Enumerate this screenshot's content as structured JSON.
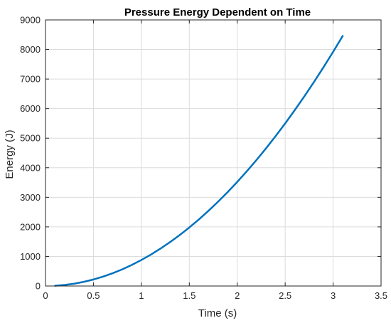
{
  "chart_data": {
    "type": "line",
    "title": "Pressure Energy Dependent on Time",
    "xlabel": "Time (s)",
    "ylabel": "Energy (J)",
    "xlim": [
      0,
      3.5
    ],
    "ylim": [
      0,
      9000
    ],
    "xticks": [
      0,
      0.5,
      1,
      1.5,
      2,
      2.5,
      3,
      3.5
    ],
    "xtick_labels": [
      "0",
      "0.5",
      "1",
      "1.5",
      "2",
      "2.5",
      "3",
      "3.5"
    ],
    "yticks": [
      0,
      1000,
      2000,
      3000,
      4000,
      5000,
      6000,
      7000,
      8000,
      9000
    ],
    "ytick_labels": [
      "0",
      "1000",
      "2000",
      "3000",
      "4000",
      "5000",
      "6000",
      "7000",
      "8000",
      "9000"
    ],
    "grid": true,
    "line_color": "#0072BD",
    "series": [
      {
        "x": [
          0.1,
          0.2,
          0.3,
          0.4,
          0.5,
          0.6,
          0.7,
          0.8,
          0.9,
          1.0,
          1.1,
          1.2,
          1.3,
          1.4,
          1.5,
          1.6,
          1.7,
          1.8,
          1.9,
          2.0,
          2.1,
          2.2,
          2.3,
          2.4,
          2.5,
          2.6,
          2.7,
          2.8,
          2.9,
          3.0,
          3.1
        ],
        "y": [
          8,
          35,
          79,
          141,
          220,
          317,
          431,
          563,
          712,
          880,
          1064,
          1267,
          1487,
          1724,
          1980,
          2252,
          2543,
          2851,
          3176,
          3520,
          3881,
          4259,
          4655,
          5069,
          5500,
          5949,
          6415,
          6899,
          7401,
          7920,
          8457
        ]
      }
    ]
  }
}
